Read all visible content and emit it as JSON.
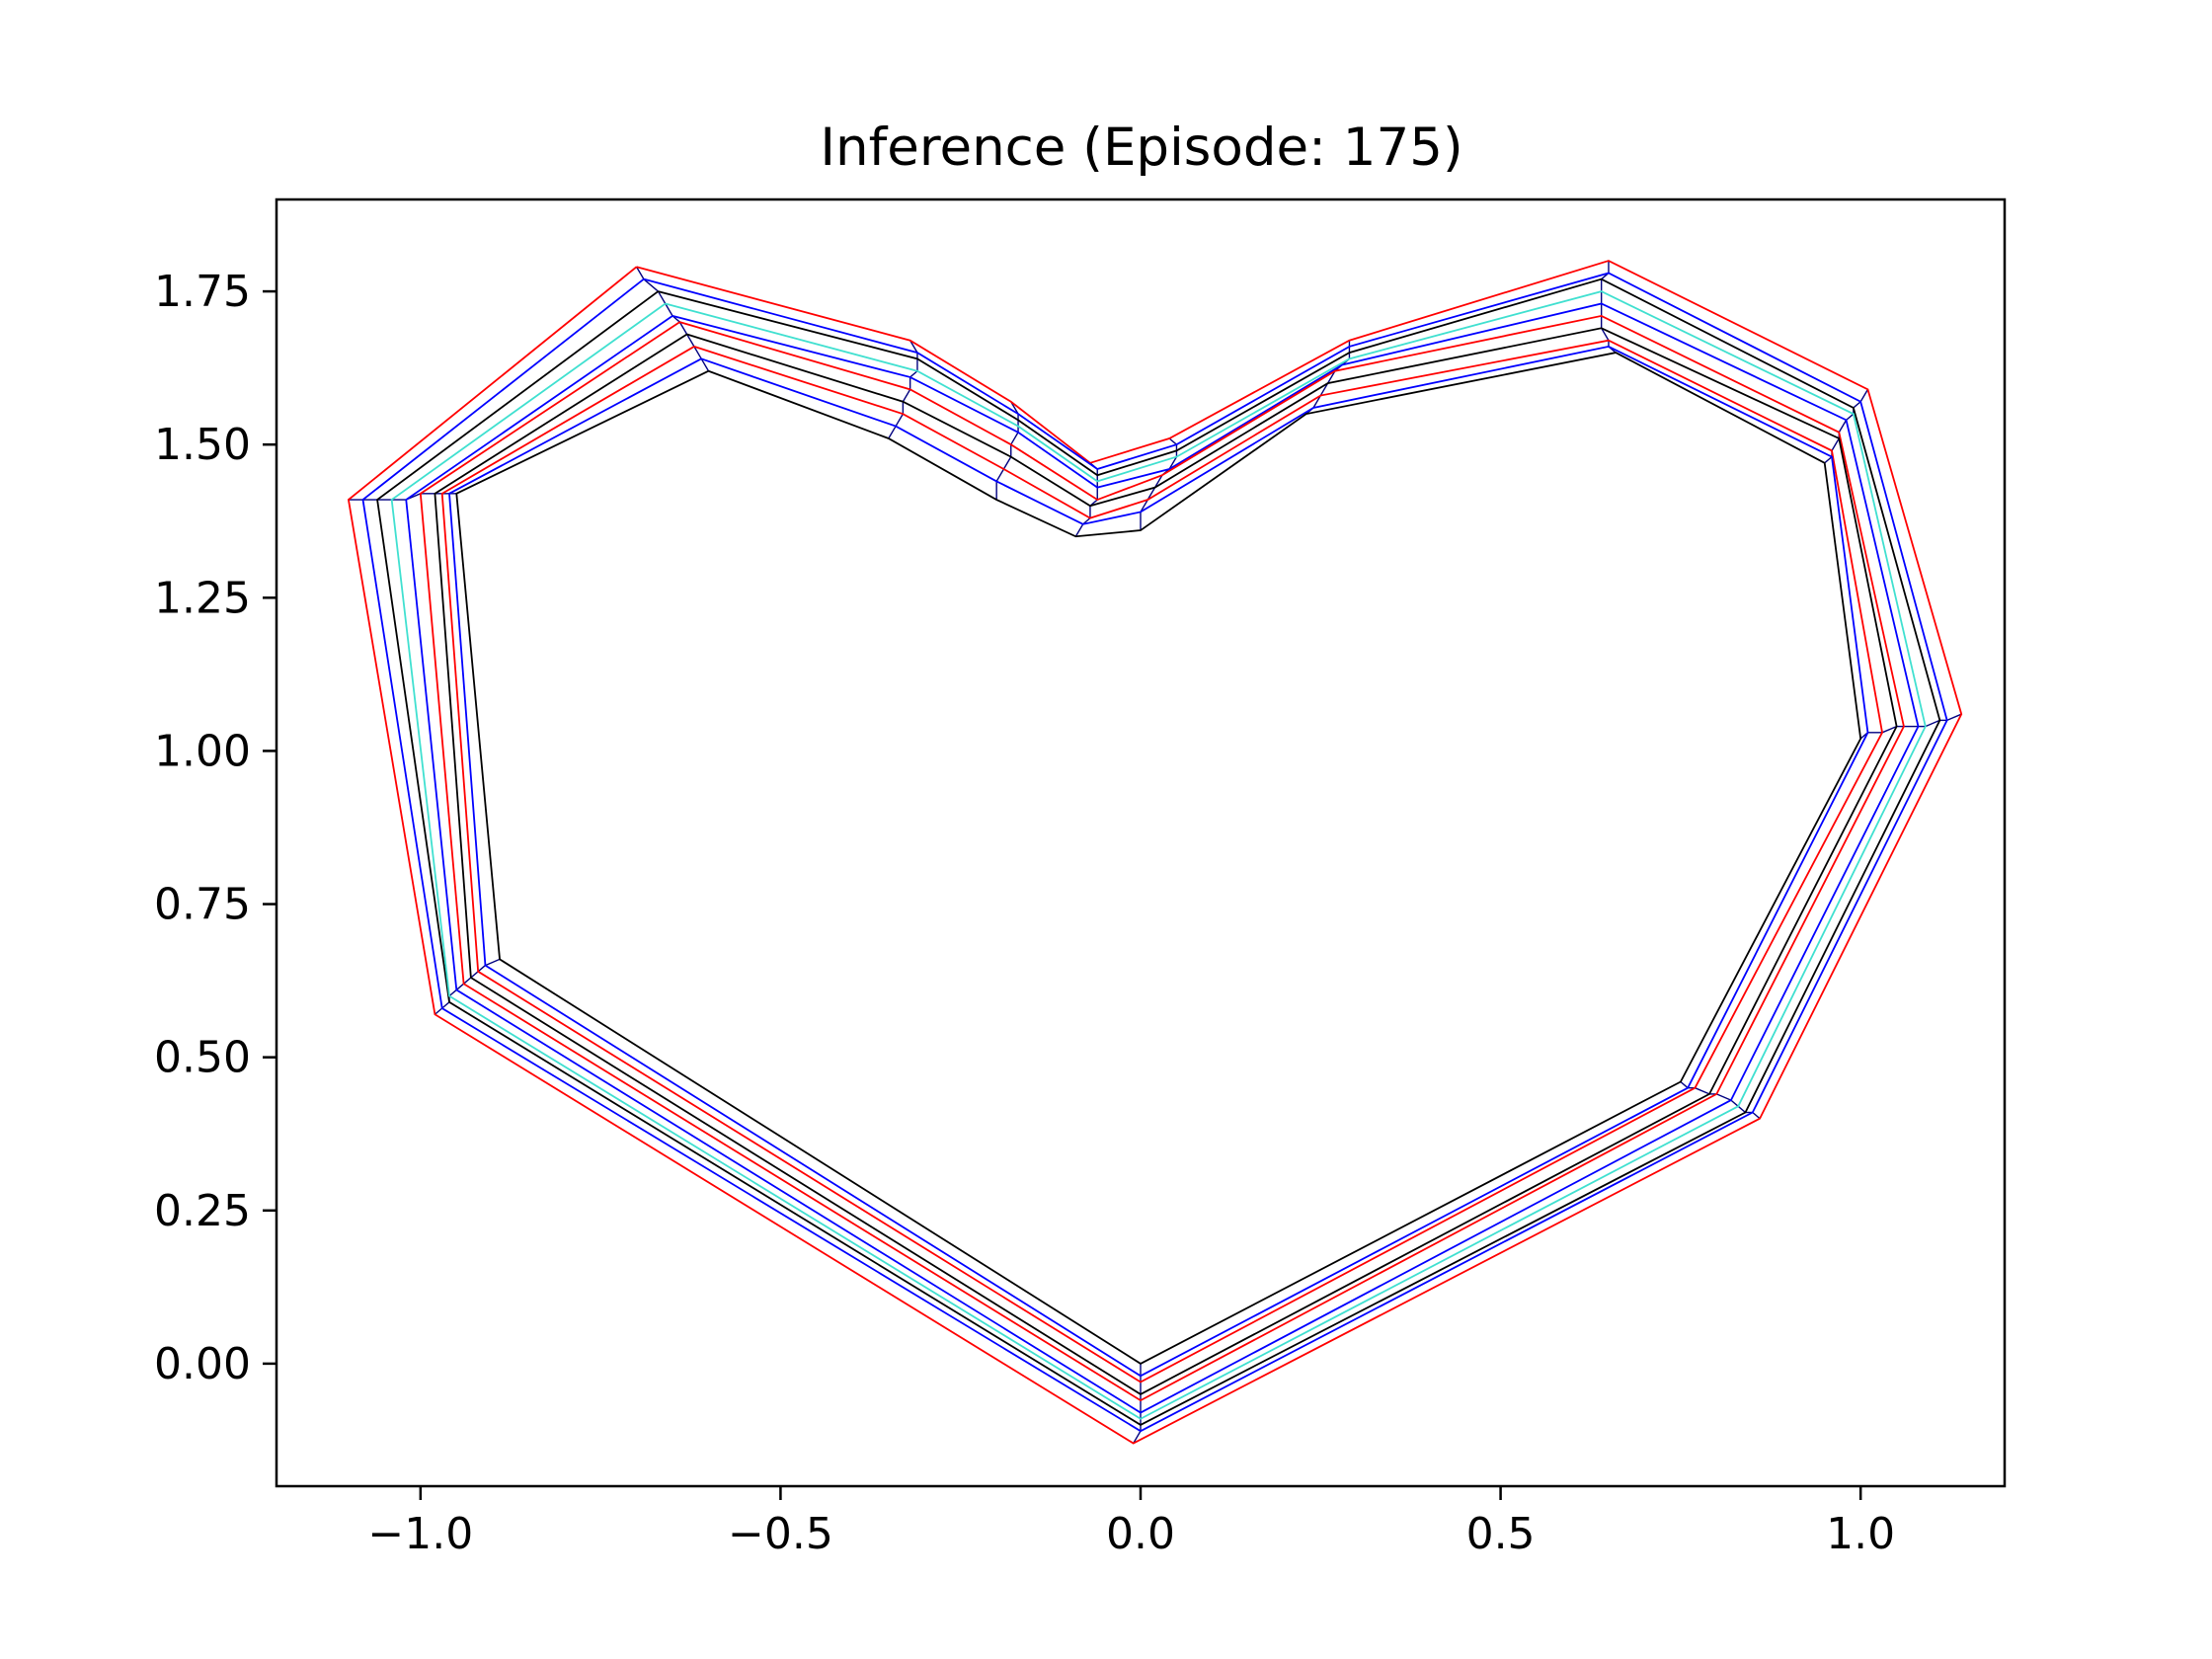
{
  "chart_data": {
    "type": "line",
    "title": "Inference (Episode: 175)",
    "xlabel": "",
    "ylabel": "",
    "xlim": [
      -1.2,
      1.2
    ],
    "ylim": [
      -0.2,
      1.9
    ],
    "xticks": [
      -1.0,
      -0.5,
      0.0,
      0.5,
      1.0
    ],
    "xtick_labels": [
      "−1.0",
      "−0.5",
      "0.0",
      "0.5",
      "1.0"
    ],
    "yticks": [
      0.0,
      0.25,
      0.5,
      0.75,
      1.0,
      1.25,
      1.5,
      1.75
    ],
    "ytick_labels": [
      "0.00",
      "0.25",
      "0.50",
      "0.75",
      "1.00",
      "1.25",
      "1.50",
      "1.75"
    ],
    "grid": false,
    "legend": "none",
    "series_colors": [
      "#ff0000",
      "#0000ff",
      "#000000",
      "#40e0d0",
      "#0000ff",
      "#ff0000",
      "#000000",
      "#ff0000",
      "#0000ff",
      "#000000"
    ],
    "series": [
      {
        "x": [
          -0.7,
          -0.32,
          -0.18,
          -0.07,
          0.04,
          0.29,
          0.65,
          1.01,
          1.14,
          0.86,
          -0.01,
          -0.98,
          -1.1,
          -0.7
        ],
        "y": [
          1.79,
          1.67,
          1.57,
          1.47,
          1.51,
          1.67,
          1.8,
          1.59,
          1.06,
          0.4,
          -0.13,
          0.57,
          1.41,
          1.79
        ]
      },
      {
        "x": [
          -0.69,
          -0.31,
          -0.17,
          -0.06,
          0.05,
          0.29,
          0.65,
          1.0,
          1.12,
          0.85,
          0.0,
          -0.97,
          -1.08,
          -0.69
        ],
        "y": [
          1.77,
          1.65,
          1.55,
          1.46,
          1.5,
          1.66,
          1.78,
          1.57,
          1.05,
          0.41,
          -0.11,
          0.58,
          1.41,
          1.77
        ]
      },
      {
        "x": [
          -0.67,
          -0.31,
          -0.17,
          -0.06,
          0.05,
          0.29,
          0.64,
          0.99,
          1.11,
          0.84,
          0.0,
          -0.96,
          -1.06,
          -0.67
        ],
        "y": [
          1.75,
          1.64,
          1.54,
          1.45,
          1.49,
          1.65,
          1.77,
          1.56,
          1.05,
          0.41,
          -0.1,
          0.59,
          1.41,
          1.75
        ]
      },
      {
        "x": [
          -0.66,
          -0.31,
          -0.17,
          -0.06,
          0.05,
          0.29,
          0.64,
          0.99,
          1.09,
          0.83,
          0.0,
          -0.96,
          -1.04,
          -0.66
        ],
        "y": [
          1.73,
          1.62,
          1.53,
          1.44,
          1.48,
          1.64,
          1.75,
          1.55,
          1.04,
          0.42,
          -0.09,
          0.6,
          1.41,
          1.73
        ]
      },
      {
        "x": [
          -0.65,
          -0.32,
          -0.17,
          -0.06,
          0.04,
          0.28,
          0.64,
          0.98,
          1.08,
          0.82,
          0.0,
          -0.95,
          -1.02,
          -0.65
        ],
        "y": [
          1.71,
          1.61,
          1.52,
          1.43,
          1.46,
          1.63,
          1.73,
          1.54,
          1.04,
          0.43,
          -0.08,
          0.61,
          1.41,
          1.71
        ]
      },
      {
        "x": [
          -0.64,
          -0.32,
          -0.18,
          -0.06,
          0.03,
          0.27,
          0.64,
          0.97,
          1.06,
          0.8,
          0.0,
          -0.94,
          -1.0,
          -0.64
        ],
        "y": [
          1.7,
          1.59,
          1.5,
          1.41,
          1.45,
          1.62,
          1.71,
          1.52,
          1.04,
          0.44,
          -0.06,
          0.62,
          1.42,
          1.7
        ]
      },
      {
        "x": [
          -0.63,
          -0.33,
          -0.18,
          -0.07,
          0.02,
          0.26,
          0.64,
          0.97,
          1.05,
          0.79,
          0.0,
          -0.93,
          -0.98,
          -0.63
        ],
        "y": [
          1.68,
          1.57,
          1.48,
          1.4,
          1.43,
          1.6,
          1.69,
          1.51,
          1.04,
          0.44,
          -0.05,
          0.63,
          1.42,
          1.68
        ]
      },
      {
        "x": [
          -0.62,
          -0.33,
          -0.19,
          -0.07,
          0.01,
          0.25,
          0.65,
          0.96,
          1.03,
          0.77,
          0.0,
          -0.92,
          -0.97,
          -0.62
        ],
        "y": [
          1.66,
          1.55,
          1.46,
          1.38,
          1.41,
          1.58,
          1.67,
          1.49,
          1.03,
          0.45,
          -0.03,
          0.64,
          1.42,
          1.66
        ]
      },
      {
        "x": [
          -0.61,
          -0.34,
          -0.2,
          -0.08,
          0.0,
          0.24,
          0.65,
          0.96,
          1.01,
          0.76,
          0.0,
          -0.91,
          -0.96,
          -0.61
        ],
        "y": [
          1.64,
          1.53,
          1.44,
          1.37,
          1.39,
          1.56,
          1.66,
          1.48,
          1.03,
          0.45,
          -0.02,
          0.65,
          1.42,
          1.64
        ]
      },
      {
        "x": [
          -0.6,
          -0.35,
          -0.2,
          -0.09,
          0.0,
          0.23,
          0.66,
          0.95,
          1.0,
          0.75,
          0.0,
          -0.89,
          -0.95,
          -0.6
        ],
        "y": [
          1.62,
          1.51,
          1.41,
          1.35,
          1.36,
          1.55,
          1.65,
          1.47,
          1.02,
          0.46,
          0.0,
          0.66,
          1.42,
          1.62
        ]
      }
    ]
  }
}
